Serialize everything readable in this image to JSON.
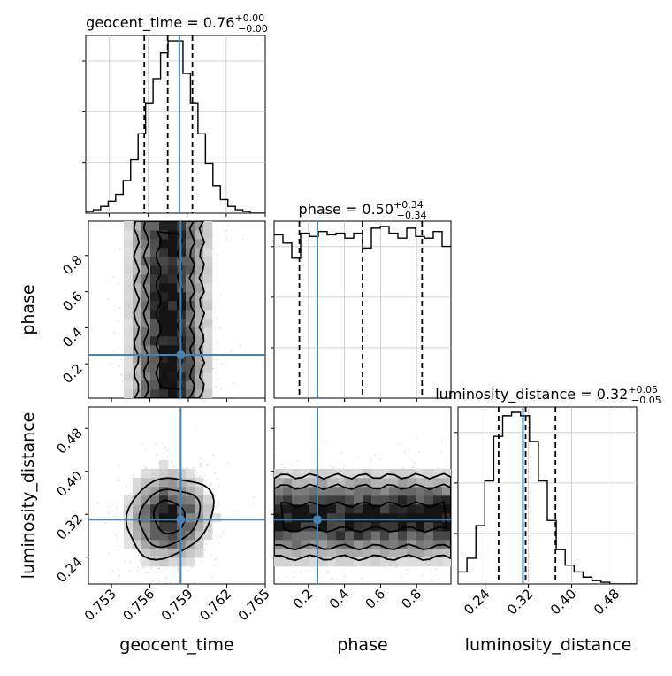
{
  "chart_data": {
    "type": "corner",
    "parameters": [
      "geocent_time",
      "phase",
      "luminosity_distance"
    ],
    "axis_labels": {
      "geocent_time": "geocent_time",
      "phase": "phase",
      "luminosity_distance": "luminosity_distance"
    },
    "titles": [
      {
        "param": "geocent_time",
        "label": "geocent_time",
        "median": "0.76",
        "plus": "+0.00",
        "minus": "−0.00"
      },
      {
        "param": "phase",
        "label": "phase",
        "median": "0.50",
        "plus": "+0.34",
        "minus": "−0.34"
      },
      {
        "param": "luminosity_distance",
        "label": "luminosity_distance",
        "median": "0.32",
        "plus": "+0.05",
        "minus": "−0.05"
      }
    ],
    "ranges": {
      "geocent_time": [
        0.7512,
        0.765
      ],
      "phase": [
        0.01,
        0.99
      ],
      "luminosity_distance": [
        0.19,
        0.52
      ]
    },
    "ticks": {
      "geocent_time": [
        {
          "value": 0.753,
          "label": "0.753"
        },
        {
          "value": 0.756,
          "label": "0.756"
        },
        {
          "value": 0.759,
          "label": "0.759"
        },
        {
          "value": 0.762,
          "label": "0.762"
        },
        {
          "value": 0.765,
          "label": "0.765"
        }
      ],
      "phase": [
        {
          "value": 0.2,
          "label": "0.2"
        },
        {
          "value": 0.4,
          "label": "0.4"
        },
        {
          "value": 0.6,
          "label": "0.6"
        },
        {
          "value": 0.8,
          "label": "0.8"
        }
      ],
      "luminosity_distance": [
        {
          "value": 0.24,
          "label": "0.24"
        },
        {
          "value": 0.32,
          "label": "0.32"
        },
        {
          "value": 0.4,
          "label": "0.40"
        },
        {
          "value": 0.48,
          "label": "0.48"
        }
      ]
    },
    "truths": {
      "geocent_time": 0.7584,
      "phase": 0.25,
      "luminosity_distance": 0.31
    },
    "quantiles": {
      "geocent_time": [
        0.7557,
        0.7575,
        0.7594
      ],
      "phase": [
        0.15,
        0.5,
        0.83
      ],
      "luminosity_distance": [
        0.265,
        0.315,
        0.37
      ]
    },
    "histograms": {
      "geocent_time": [
        0.01,
        0.02,
        0.04,
        0.07,
        0.11,
        0.19,
        0.31,
        0.46,
        0.64,
        0.78,
        0.93,
        1.0,
        1.0,
        0.81,
        0.64,
        0.46,
        0.29,
        0.16,
        0.08,
        0.04,
        0.02,
        0.01,
        0.0,
        0.0
      ],
      "phase": [
        0.98,
        0.93,
        0.84,
        0.99,
        0.97,
        1.0,
        0.98,
        0.99,
        0.96,
        0.99,
        0.9,
        1.02,
        1.03,
        0.99,
        0.96,
        1.02,
        0.97,
        0.96,
        1.0,
        0.91
      ],
      "luminosity_distance": [
        0.07,
        0.15,
        0.34,
        0.6,
        0.86,
        0.98,
        1.0,
        0.98,
        0.83,
        0.6,
        0.37,
        0.2,
        0.11,
        0.07,
        0.04,
        0.02,
        0.01,
        0.0,
        0.0,
        0.0
      ]
    },
    "grid": true,
    "truth_color": "#4682b4",
    "quantile_linestyle": "dashed"
  }
}
